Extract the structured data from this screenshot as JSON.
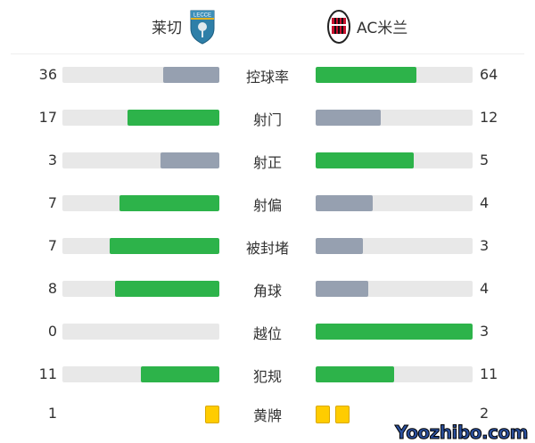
{
  "home": {
    "name": "莱切",
    "badge": "lecce-badge-icon",
    "badge_text": "LECCE"
  },
  "away": {
    "name": "AC米兰",
    "badge": "ac-milan-badge-icon"
  },
  "colors": {
    "leader": "#2db34a",
    "trailer": "#96a0b0",
    "track": "#e8e8e8",
    "card": "#ffcc00"
  },
  "stats": [
    {
      "label": "控球率",
      "home": "36",
      "away": "64"
    },
    {
      "label": "射门",
      "home": "17",
      "away": "12"
    },
    {
      "label": "射正",
      "home": "3",
      "away": "5"
    },
    {
      "label": "射偏",
      "home": "7",
      "away": "4"
    },
    {
      "label": "被封堵",
      "home": "7",
      "away": "3"
    },
    {
      "label": "角球",
      "home": "8",
      "away": "4"
    },
    {
      "label": "越位",
      "home": "0",
      "away": "3"
    },
    {
      "label": "犯规",
      "home": "11",
      "away": "11"
    }
  ],
  "yellow": {
    "label": "黄牌",
    "home": "1",
    "away": "2"
  },
  "watermark": "Yoozhibo.com"
}
